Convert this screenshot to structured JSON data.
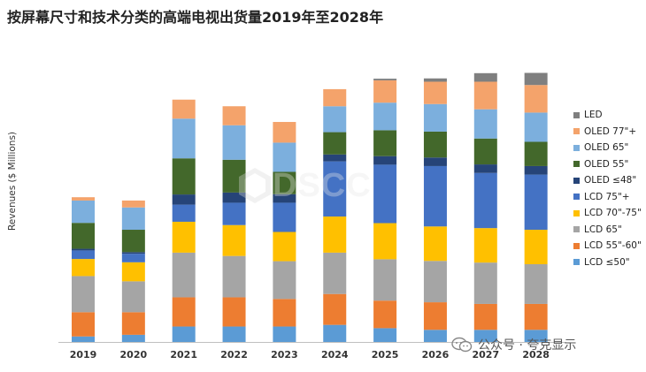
{
  "chart_data": {
    "type": "bar",
    "stacked": true,
    "title": "按屏幕尺寸和技术分类的高端电视出货量2019年至2028年",
    "ylabel": "Revenues ($ Millions)",
    "xlabel": "",
    "ylim": [
      0,
      100
    ],
    "legend_position": "right",
    "grid": false,
    "categories": [
      "2019",
      "2020",
      "2021",
      "2022",
      "2023",
      "2024",
      "2025",
      "2026",
      "2027",
      "2028"
    ],
    "series": [
      {
        "name": "LCD  ≤50\"",
        "color": "#5B9BD5",
        "values": [
          2.0,
          2.6,
          5.6,
          5.6,
          5.6,
          6.2,
          5.0,
          4.4,
          4.4,
          4.4
        ]
      },
      {
        "name": "LCD 55\"-60\"",
        "color": "#ED7D31",
        "values": [
          8.8,
          8.2,
          10.6,
          10.6,
          10.0,
          11.2,
          10.0,
          10.0,
          9.4,
          9.4
        ]
      },
      {
        "name": "LCD 65\"",
        "color": "#A5A5A5",
        "values": [
          13.1,
          11.2,
          16.2,
          15.0,
          13.7,
          15.0,
          15.0,
          15.0,
          15.0,
          14.4
        ]
      },
      {
        "name": "LCD 70\"-75\"",
        "color": "#FFC000",
        "values": [
          6.2,
          6.9,
          11.2,
          11.2,
          10.6,
          13.1,
          13.1,
          12.5,
          12.5,
          12.5
        ]
      },
      {
        "name": "LCD 75\"+",
        "color": "#4472C4",
        "values": [
          3.1,
          3.1,
          6.2,
          8.1,
          10.6,
          20.0,
          21.2,
          21.9,
          20.0,
          20.0
        ]
      },
      {
        "name": "OLED  ≤48\"",
        "color": "#264478",
        "values": [
          0.6,
          0.6,
          3.7,
          3.7,
          3.1,
          2.5,
          3.1,
          3.1,
          3.1,
          3.1
        ]
      },
      {
        "name": "OLED 55\"",
        "color": "#43682B",
        "values": [
          9.4,
          8.1,
          13.1,
          11.9,
          8.1,
          8.1,
          9.4,
          9.4,
          9.4,
          8.8
        ]
      },
      {
        "name": "OLED 65\"",
        "color": "#7CAFDD",
        "values": [
          8.1,
          8.1,
          14.4,
          12.5,
          10.6,
          9.4,
          10.0,
          10.0,
          10.6,
          10.6
        ]
      },
      {
        "name": "OLED 77\"+",
        "color": "#F4A36B",
        "values": [
          1.2,
          2.5,
          6.9,
          6.9,
          7.5,
          6.2,
          8.1,
          8.1,
          10.0,
          10.0
        ]
      },
      {
        "name": "LED",
        "color": "#7F7F7F",
        "values": [
          0,
          0,
          0,
          0,
          0,
          0,
          0.6,
          1.2,
          3.1,
          4.4
        ]
      }
    ]
  },
  "watermark": {
    "text": "DSCC"
  },
  "footer": {
    "text": "公众号 · 夸克显示"
  }
}
